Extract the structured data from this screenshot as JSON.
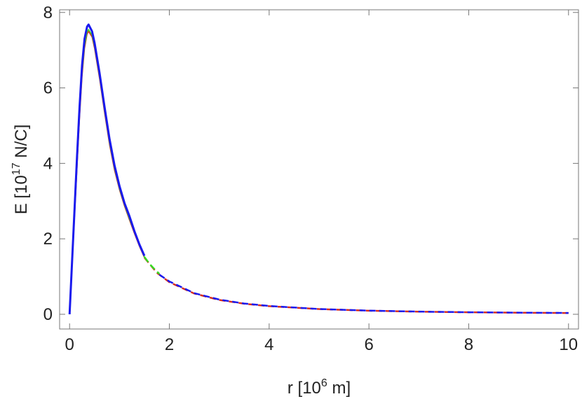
{
  "chart_data": {
    "type": "line",
    "xlabel": [
      "r [10",
      "6",
      " m]"
    ],
    "ylabel": [
      "E [10",
      "17",
      " N/C]"
    ],
    "xlim": [
      -0.2,
      10.2
    ],
    "ylim": [
      -0.39,
      8.07
    ],
    "xticks": [
      0,
      2,
      4,
      6,
      8,
      10
    ],
    "yticks": [
      0,
      2,
      4,
      6,
      8
    ],
    "series": [
      {
        "color": "#d62d20",
        "style": "solid",
        "width": 1.5,
        "x": [
          0,
          0.05,
          0.1,
          0.15,
          0.2,
          0.25,
          0.3,
          0.35,
          0.38,
          0.45,
          0.5,
          0.6,
          0.7,
          0.8,
          0.9,
          1.0,
          1.1,
          1.2,
          1.3,
          1.4,
          1.5
        ],
        "values": [
          0,
          1.3,
          2.6,
          3.9,
          5.2,
          6.3,
          7.05,
          7.42,
          7.5,
          7.35,
          7.05,
          6.25,
          5.35,
          4.5,
          3.82,
          3.3,
          2.87,
          2.5,
          2.14,
          1.8,
          1.5
        ]
      },
      {
        "color": "#33dd22",
        "style": "solid",
        "width": 1.5,
        "x": [
          0,
          0.05,
          0.1,
          0.15,
          0.2,
          0.25,
          0.3,
          0.35,
          0.38,
          0.45,
          0.5,
          0.6,
          0.7,
          0.8,
          0.9,
          1.0,
          1.1,
          1.2,
          1.3,
          1.4,
          1.5
        ],
        "values": [
          0,
          1.35,
          2.7,
          4.0,
          5.3,
          6.4,
          7.12,
          7.48,
          7.55,
          7.4,
          7.1,
          6.3,
          5.4,
          4.55,
          3.87,
          3.33,
          2.9,
          2.53,
          2.17,
          1.82,
          1.52
        ]
      },
      {
        "color": "#d62d20",
        "style": "dashed",
        "width": 2.5,
        "x": [
          1.5,
          1.75,
          2,
          2.5,
          3,
          3.5,
          4,
          5,
          6,
          7,
          8,
          9,
          10
        ],
        "values": [
          1.5,
          1.1,
          0.85,
          0.55,
          0.38,
          0.28,
          0.215,
          0.138,
          0.095,
          0.07,
          0.053,
          0.042,
          0.034
        ]
      },
      {
        "color": "#33dd22",
        "style": "dashed",
        "width": 2.5,
        "x": [
          1.5,
          1.6,
          1.7,
          1.8
        ],
        "values": [
          1.52,
          1.34,
          1.2,
          1.07
        ]
      },
      {
        "color": "#1a1aee",
        "style": "solid",
        "width": 3,
        "x": [
          0,
          0.05,
          0.1,
          0.15,
          0.2,
          0.25,
          0.3,
          0.35,
          0.38,
          0.45,
          0.5,
          0.6,
          0.7,
          0.8,
          0.9,
          1.0,
          1.1,
          1.2,
          1.3,
          1.4,
          1.5
        ],
        "values": [
          0,
          1.4,
          2.8,
          4.2,
          5.5,
          6.6,
          7.3,
          7.62,
          7.68,
          7.5,
          7.2,
          6.4,
          5.5,
          4.65,
          3.95,
          3.4,
          2.95,
          2.6,
          2.2,
          1.85,
          1.55
        ]
      },
      {
        "color": "#1a1aee",
        "style": "dashed",
        "width": 2.5,
        "x": [
          1.8,
          2,
          2.5,
          3,
          3.5,
          4,
          5,
          6,
          7,
          8,
          9,
          10
        ],
        "values": [
          1.05,
          0.87,
          0.56,
          0.39,
          0.285,
          0.22,
          0.14,
          0.097,
          0.071,
          0.054,
          0.043,
          0.035
        ]
      }
    ]
  }
}
